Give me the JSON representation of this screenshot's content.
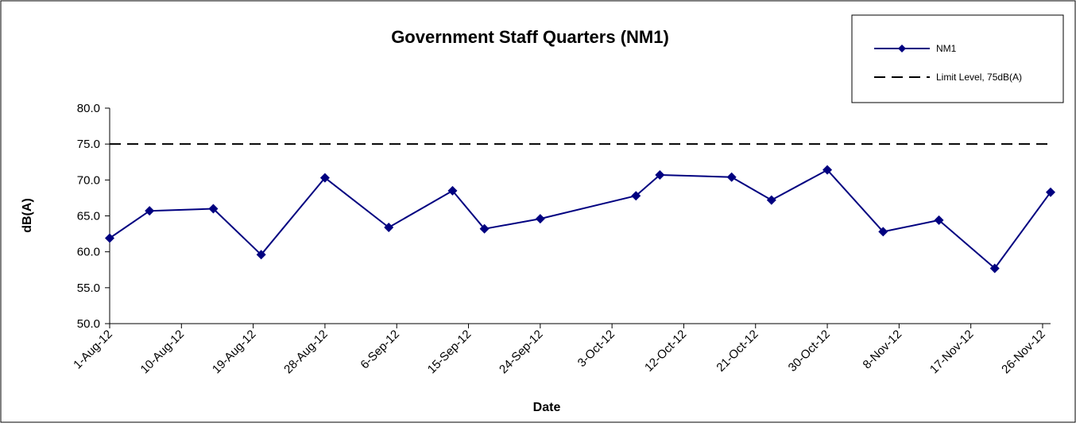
{
  "chart_data": {
    "type": "line",
    "title": "Government Staff Quarters (NM1)",
    "xlabel": "Date",
    "ylabel": "dB(A)",
    "ylim": [
      50,
      80
    ],
    "ytick_labels": [
      "50.0",
      "55.0",
      "60.0",
      "65.0",
      "70.0",
      "75.0",
      "80.0"
    ],
    "x_axis_start": "2012-08-01",
    "x_axis_end": "2012-11-27",
    "x_tick_labels": [
      "1-Aug-12",
      "10-Aug-12",
      "19-Aug-12",
      "28-Aug-12",
      "6-Sep-12",
      "15-Sep-12",
      "24-Sep-12",
      "3-Oct-12",
      "12-Oct-12",
      "21-Oct-12",
      "30-Oct-12",
      "8-Nov-12",
      "17-Nov-12",
      "26-Nov-12"
    ],
    "x_tick_dates": [
      "2012-08-01",
      "2012-08-10",
      "2012-08-19",
      "2012-08-28",
      "2012-09-06",
      "2012-09-15",
      "2012-09-24",
      "2012-10-03",
      "2012-10-12",
      "2012-10-21",
      "2012-10-30",
      "2012-11-08",
      "2012-11-17",
      "2012-11-26"
    ],
    "grid": false,
    "legend_position": "top-right",
    "series": [
      {
        "name": "NM1",
        "color": "#000080",
        "marker": "diamond",
        "x": [
          "2012-08-01",
          "2012-08-06",
          "2012-08-14",
          "2012-08-20",
          "2012-08-28",
          "2012-09-05",
          "2012-09-13",
          "2012-09-17",
          "2012-09-24",
          "2012-10-06",
          "2012-10-09",
          "2012-10-18",
          "2012-10-23",
          "2012-10-30",
          "2012-11-06",
          "2012-11-13",
          "2012-11-20",
          "2012-11-27"
        ],
        "y": [
          61.9,
          65.7,
          66.0,
          59.6,
          70.3,
          63.4,
          68.5,
          63.2,
          64.6,
          67.8,
          70.7,
          70.4,
          67.2,
          71.4,
          62.8,
          64.4,
          57.7,
          68.3
        ]
      }
    ],
    "reference_lines": [
      {
        "name": "Limit Level, 75dB(A)",
        "y": 75,
        "color": "#000000",
        "style": "dashed"
      }
    ]
  }
}
